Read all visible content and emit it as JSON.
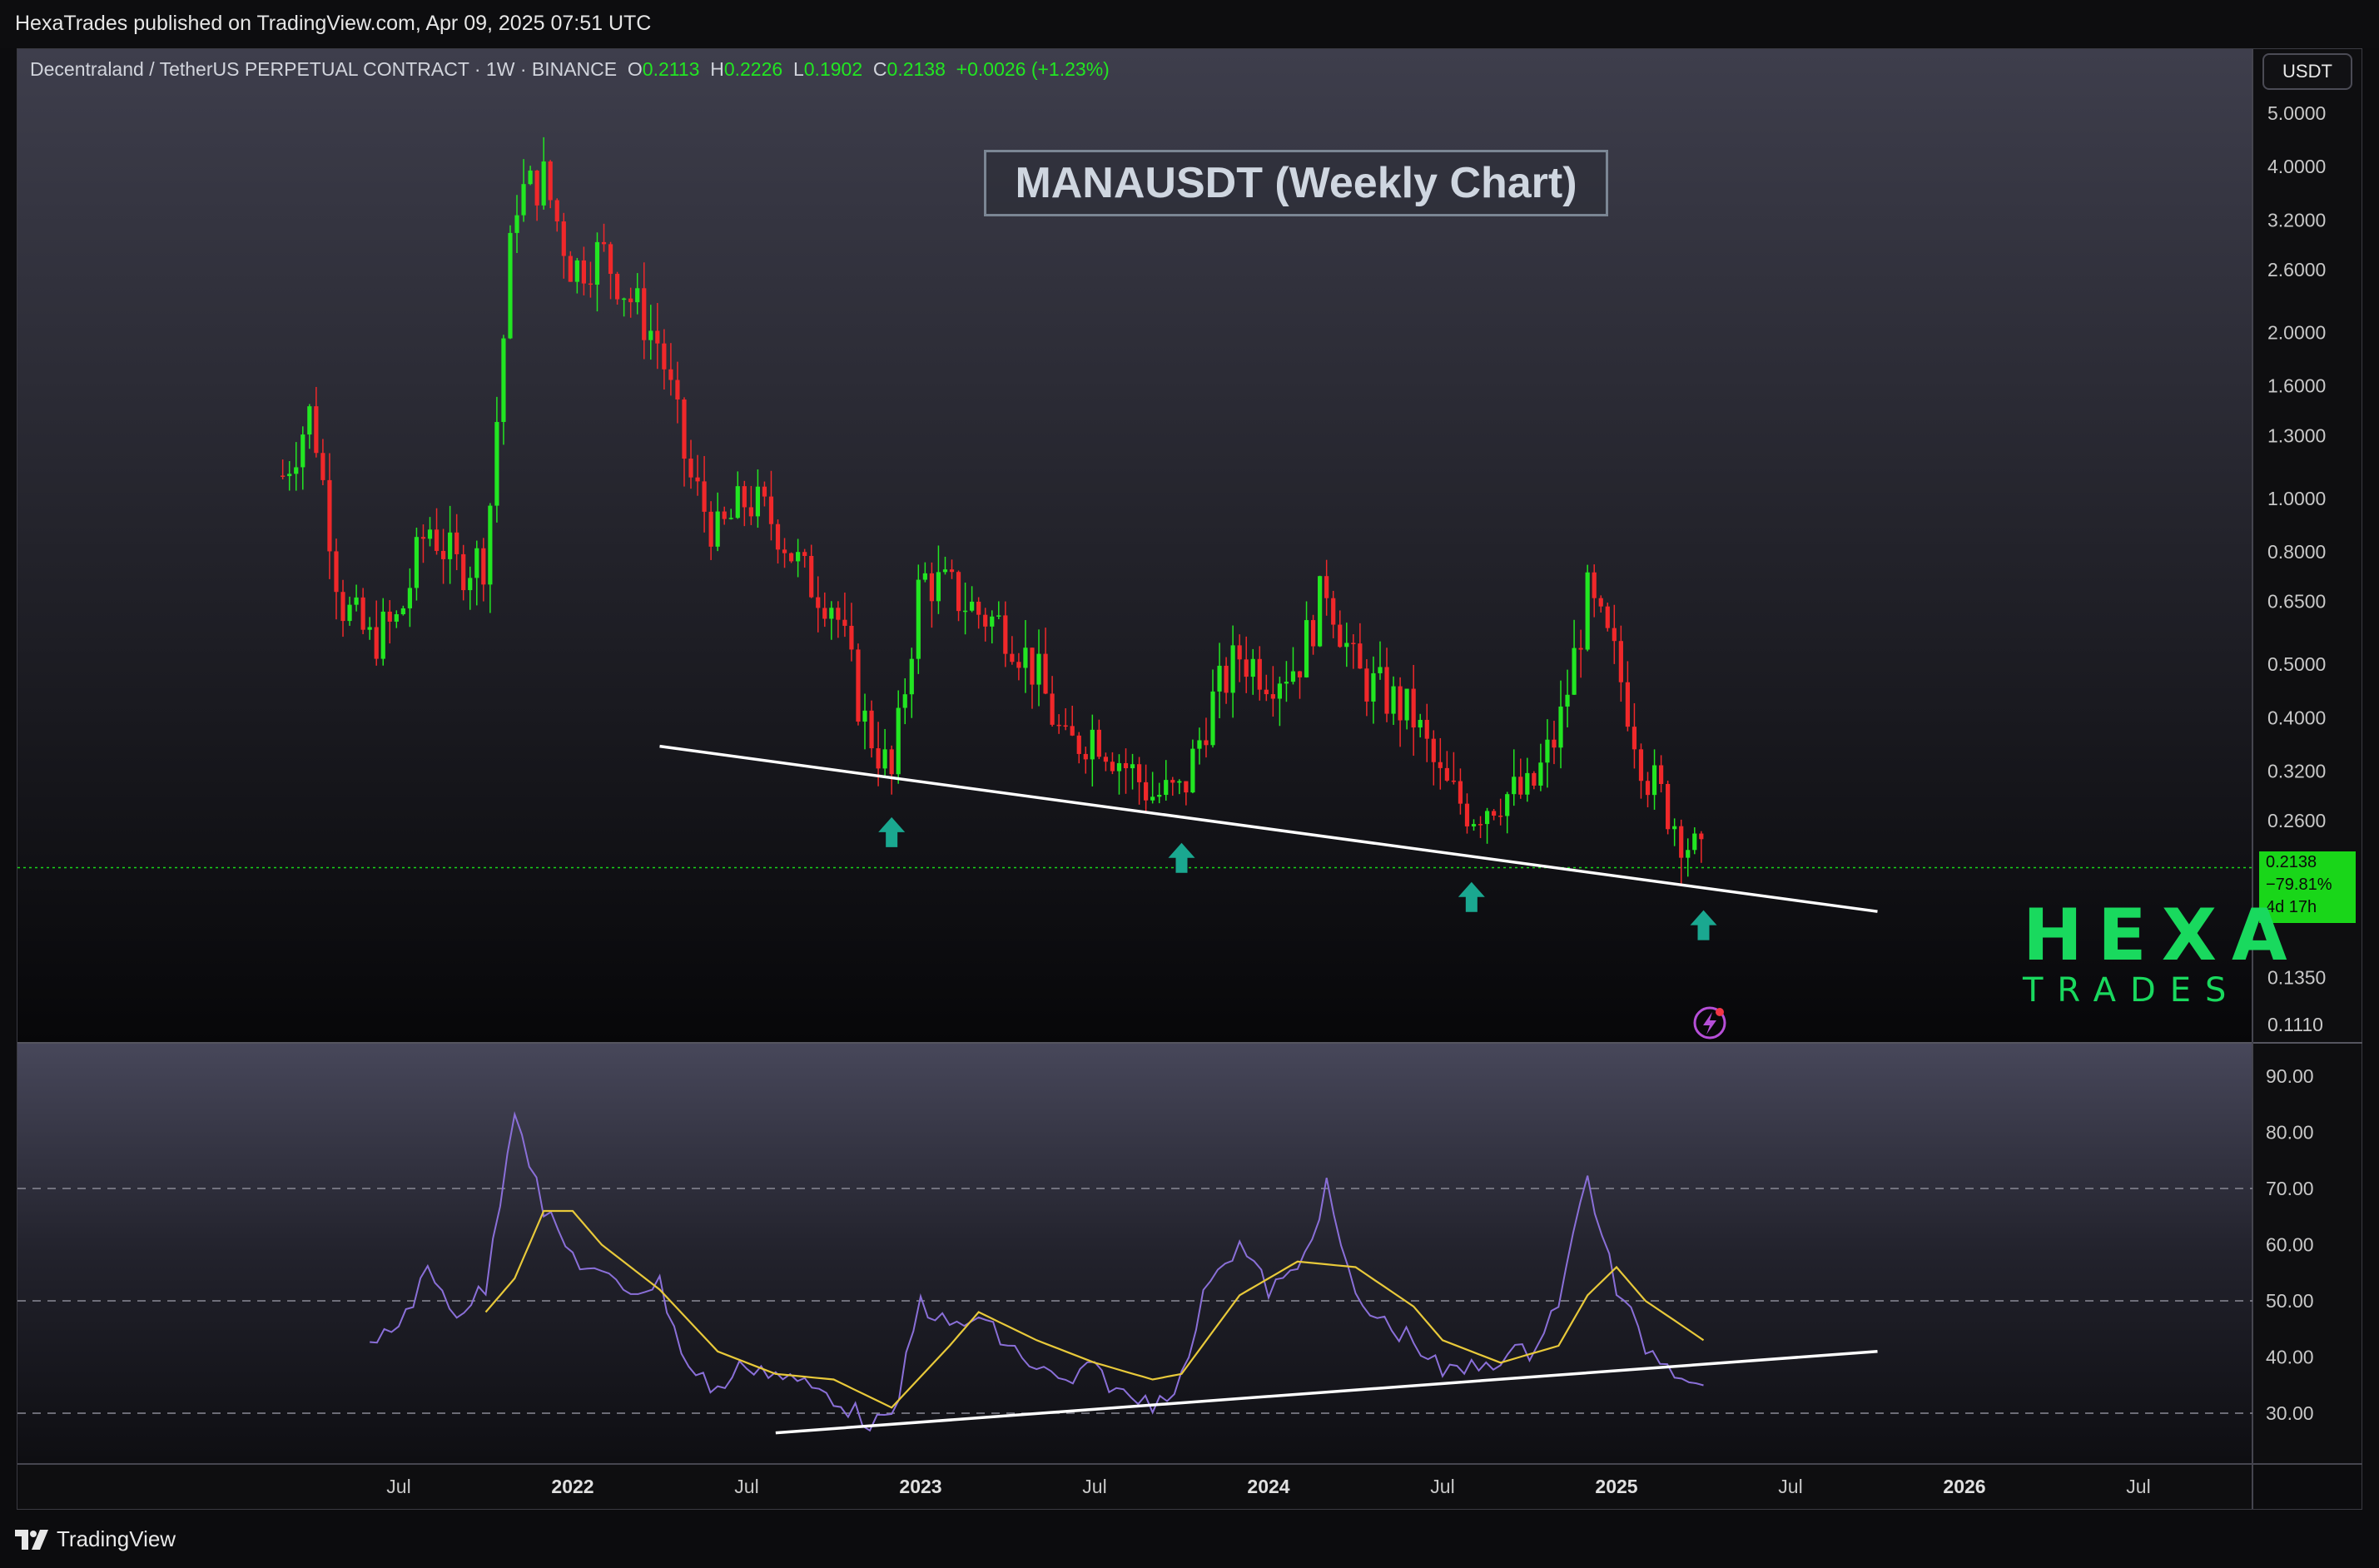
{
  "header": {
    "publisher": "HexaTrades published on TradingView.com, Apr 09, 2025 07:51 UTC"
  },
  "symbol": {
    "name": "Decentraland / TetherUS PERPETUAL CONTRACT · 1W · BINANCE",
    "o_label": "O",
    "o": "0.2113",
    "h_label": "H",
    "h": "0.2226",
    "l_label": "L",
    "l": "0.1902",
    "c_label": "C",
    "c": "0.2138",
    "change": "+0.0026 (+1.23%)"
  },
  "title_box": "MANAUSDT (Weekly Chart)",
  "currency": "USDT",
  "price_tag": {
    "price": "0.2138",
    "change_pct": "−79.81%",
    "countdown": "4d 17h"
  },
  "logo": {
    "top": "HEXA",
    "bottom": "TRADES"
  },
  "footer": {
    "brand": "TradingView"
  },
  "colors": {
    "up": "#22e622",
    "down": "#f0282a",
    "rsi": "#8a6fd8",
    "rsi_ma": "#e8c93a",
    "trendline": "#ffffff",
    "arrow": "#1aa890",
    "price_line": "#19d619"
  },
  "chart_data": [
    {
      "type": "candlestick",
      "title": "MANAUSDT (Weekly Chart)",
      "scale": "log",
      "price_axis_ticks": [
        "5.0000",
        "4.0000",
        "3.2000",
        "2.6000",
        "2.0000",
        "1.6000",
        "1.3000",
        "1.0000",
        "0.8000",
        "0.6500",
        "0.5000",
        "0.4000",
        "0.3200",
        "0.2600",
        "0.2138",
        "0.1350",
        "0.1110"
      ],
      "time_axis_ticks": [
        "Jul",
        "2022",
        "Jul",
        "2023",
        "Jul",
        "2024",
        "Jul",
        "2025",
        "Jul",
        "2026",
        "Jul"
      ],
      "ylim": [
        0.105,
        6.0
      ],
      "current_price": 0.2138,
      "support_trendline": [
        {
          "date": "2022-04",
          "price": 0.355
        },
        {
          "date": "2025-10",
          "price": 0.178
        }
      ],
      "support_touches": [
        {
          "date": "2022-12",
          "price": 0.295
        },
        {
          "date": "2023-10",
          "price": 0.265
        },
        {
          "date": "2024-08",
          "price": 0.225
        },
        {
          "date": "2025-04",
          "price": 0.2
        }
      ],
      "approx_price_path": [
        {
          "date": "2021-03",
          "price": 1.1
        },
        {
          "date": "2021-04",
          "price": 1.45
        },
        {
          "date": "2021-05",
          "price": 0.65
        },
        {
          "date": "2021-06",
          "price": 0.55
        },
        {
          "date": "2021-07",
          "price": 0.6
        },
        {
          "date": "2021-08",
          "price": 0.9
        },
        {
          "date": "2021-09",
          "price": 0.75
        },
        {
          "date": "2021-10",
          "price": 0.78
        },
        {
          "date": "2021-11",
          "price": 3.5
        },
        {
          "date": "2021-12",
          "price": 3.8
        },
        {
          "date": "2022-01",
          "price": 2.6
        },
        {
          "date": "2022-02",
          "price": 2.8
        },
        {
          "date": "2022-03",
          "price": 2.3
        },
        {
          "date": "2022-04",
          "price": 1.9
        },
        {
          "date": "2022-05",
          "price": 1.1
        },
        {
          "date": "2022-06",
          "price": 0.85
        },
        {
          "date": "2022-07",
          "price": 1.0
        },
        {
          "date": "2022-08",
          "price": 0.9
        },
        {
          "date": "2022-09",
          "price": 0.72
        },
        {
          "date": "2022-10",
          "price": 0.65
        },
        {
          "date": "2022-11",
          "price": 0.4
        },
        {
          "date": "2022-12",
          "price": 0.31
        },
        {
          "date": "2023-01",
          "price": 0.72
        },
        {
          "date": "2023-02",
          "price": 0.68
        },
        {
          "date": "2023-03",
          "price": 0.62
        },
        {
          "date": "2023-04",
          "price": 0.58
        },
        {
          "date": "2023-05",
          "price": 0.48
        },
        {
          "date": "2023-06",
          "price": 0.35
        },
        {
          "date": "2023-07",
          "price": 0.38
        },
        {
          "date": "2023-08",
          "price": 0.33
        },
        {
          "date": "2023-09",
          "price": 0.29
        },
        {
          "date": "2023-10",
          "price": 0.29
        },
        {
          "date": "2023-11",
          "price": 0.42
        },
        {
          "date": "2023-12",
          "price": 0.52
        },
        {
          "date": "2024-01",
          "price": 0.48
        },
        {
          "date": "2024-02",
          "price": 0.5
        },
        {
          "date": "2024-03",
          "price": 0.7
        },
        {
          "date": "2024-04",
          "price": 0.48
        },
        {
          "date": "2024-05",
          "price": 0.44
        },
        {
          "date": "2024-06",
          "price": 0.4
        },
        {
          "date": "2024-07",
          "price": 0.3
        },
        {
          "date": "2024-08",
          "price": 0.27
        },
        {
          "date": "2024-09",
          "price": 0.29
        },
        {
          "date": "2024-10",
          "price": 0.29
        },
        {
          "date": "2024-11",
          "price": 0.38
        },
        {
          "date": "2024-12",
          "price": 0.66
        },
        {
          "date": "2025-01",
          "price": 0.5
        },
        {
          "date": "2025-02",
          "price": 0.32
        },
        {
          "date": "2025-03",
          "price": 0.26
        },
        {
          "date": "2025-04",
          "price": 0.2138
        }
      ]
    },
    {
      "type": "line",
      "title": "RSI",
      "ylim": [
        23,
        95
      ],
      "y_ticks": [
        "90.00",
        "80.00",
        "70.00",
        "60.00",
        "50.00",
        "40.00",
        "30.00"
      ],
      "reference_lines": [
        70,
        50,
        30
      ],
      "rising_trendline": [
        {
          "date": "2022-08",
          "value": 26.5
        },
        {
          "date": "2025-10",
          "value": 41
        }
      ],
      "series": [
        {
          "key": "rsi",
          "points": [
            {
              "date": "2021-06",
              "value": 41
            },
            {
              "date": "2021-07",
              "value": 46
            },
            {
              "date": "2021-08",
              "value": 55
            },
            {
              "date": "2021-09",
              "value": 48
            },
            {
              "date": "2021-10",
              "value": 52
            },
            {
              "date": "2021-11",
              "value": 85
            },
            {
              "date": "2021-12",
              "value": 66
            },
            {
              "date": "2022-01",
              "value": 58
            },
            {
              "date": "2022-02",
              "value": 54
            },
            {
              "date": "2022-03",
              "value": 52
            },
            {
              "date": "2022-04",
              "value": 53
            },
            {
              "date": "2022-05",
              "value": 38
            },
            {
              "date": "2022-06",
              "value": 34
            },
            {
              "date": "2022-07",
              "value": 39
            },
            {
              "date": "2022-08",
              "value": 37
            },
            {
              "date": "2022-09",
              "value": 35
            },
            {
              "date": "2022-10",
              "value": 33
            },
            {
              "date": "2022-11",
              "value": 29
            },
            {
              "date": "2022-12",
              "value": 28
            },
            {
              "date": "2023-01",
              "value": 50
            },
            {
              "date": "2023-02",
              "value": 45
            },
            {
              "date": "2023-03",
              "value": 47
            },
            {
              "date": "2023-04",
              "value": 42
            },
            {
              "date": "2023-05",
              "value": 38
            },
            {
              "date": "2023-06",
              "value": 35
            },
            {
              "date": "2023-07",
              "value": 38
            },
            {
              "date": "2023-08",
              "value": 33
            },
            {
              "date": "2023-09",
              "value": 32
            },
            {
              "date": "2023-10",
              "value": 36
            },
            {
              "date": "2023-11",
              "value": 55
            },
            {
              "date": "2023-12",
              "value": 60
            },
            {
              "date": "2024-01",
              "value": 52
            },
            {
              "date": "2024-02",
              "value": 55
            },
            {
              "date": "2024-03",
              "value": 70
            },
            {
              "date": "2024-04",
              "value": 50
            },
            {
              "date": "2024-05",
              "value": 46
            },
            {
              "date": "2024-06",
              "value": 43
            },
            {
              "date": "2024-07",
              "value": 37
            },
            {
              "date": "2024-08",
              "value": 38
            },
            {
              "date": "2024-09",
              "value": 40
            },
            {
              "date": "2024-10",
              "value": 41
            },
            {
              "date": "2024-11",
              "value": 50
            },
            {
              "date": "2024-12",
              "value": 72
            },
            {
              "date": "2025-01",
              "value": 52
            },
            {
              "date": "2025-02",
              "value": 42
            },
            {
              "date": "2025-03",
              "value": 38
            },
            {
              "date": "2025-04",
              "value": 36
            }
          ]
        },
        {
          "key": "rsi_ma",
          "points": [
            {
              "date": "2021-10",
              "value": 48
            },
            {
              "date": "2021-11",
              "value": 54
            },
            {
              "date": "2021-12",
              "value": 66
            },
            {
              "date": "2022-01",
              "value": 66
            },
            {
              "date": "2022-02",
              "value": 60
            },
            {
              "date": "2022-04",
              "value": 52
            },
            {
              "date": "2022-06",
              "value": 41
            },
            {
              "date": "2022-08",
              "value": 37
            },
            {
              "date": "2022-10",
              "value": 36
            },
            {
              "date": "2022-12",
              "value": 31
            },
            {
              "date": "2023-02",
              "value": 42
            },
            {
              "date": "2023-03",
              "value": 48
            },
            {
              "date": "2023-05",
              "value": 43
            },
            {
              "date": "2023-07",
              "value": 39
            },
            {
              "date": "2023-09",
              "value": 36
            },
            {
              "date": "2023-10",
              "value": 37
            },
            {
              "date": "2023-12",
              "value": 51
            },
            {
              "date": "2024-02",
              "value": 57
            },
            {
              "date": "2024-04",
              "value": 56
            },
            {
              "date": "2024-06",
              "value": 49
            },
            {
              "date": "2024-07",
              "value": 43
            },
            {
              "date": "2024-09",
              "value": 39
            },
            {
              "date": "2024-11",
              "value": 42
            },
            {
              "date": "2024-12",
              "value": 51
            },
            {
              "date": "2025-01",
              "value": 56
            },
            {
              "date": "2025-02",
              "value": 50
            },
            {
              "date": "2025-04",
              "value": 43
            }
          ]
        }
      ]
    }
  ]
}
